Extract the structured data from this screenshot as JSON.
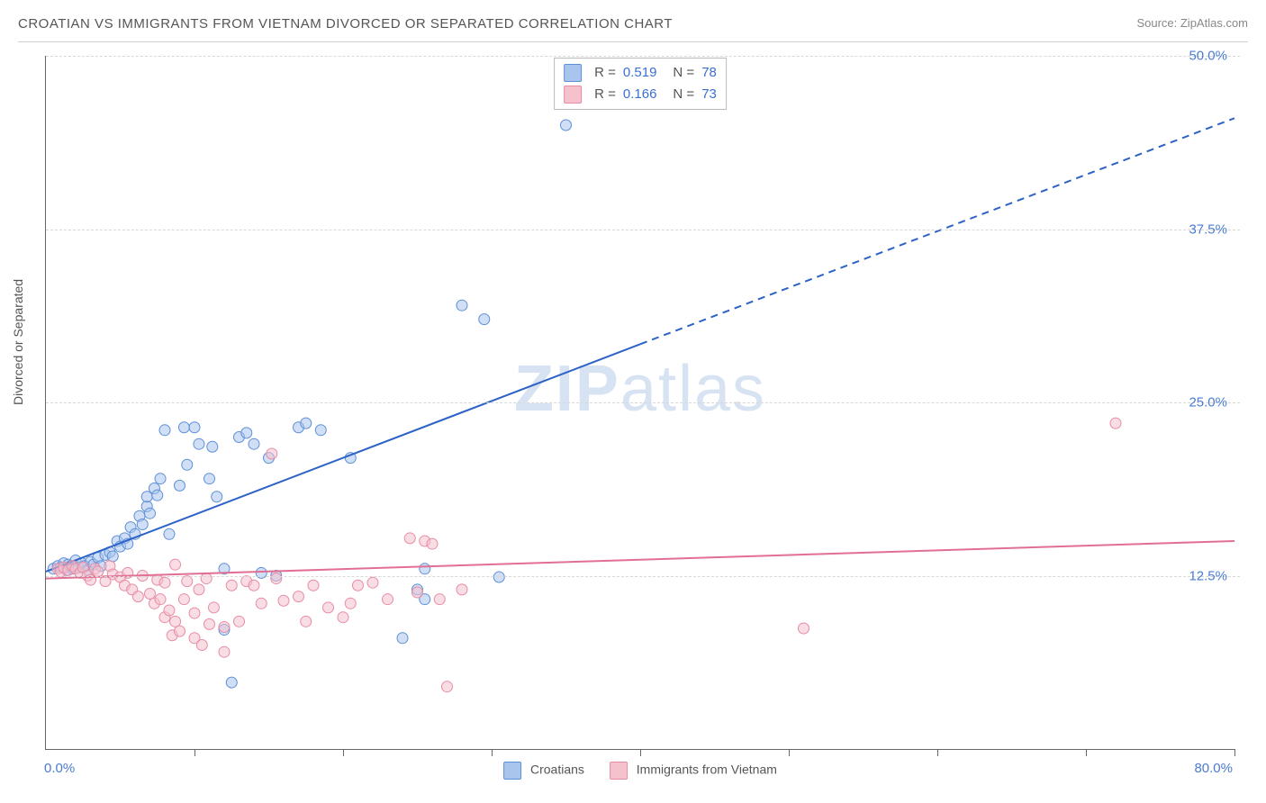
{
  "title": "CROATIAN VS IMMIGRANTS FROM VIETNAM DIVORCED OR SEPARATED CORRELATION CHART",
  "source_label": "Source: ZipAtlas.com",
  "y_axis_label": "Divorced or Separated",
  "watermark": "ZIPatlas",
  "chart": {
    "type": "scatter",
    "background_color": "#ffffff",
    "grid_color": "#d8d8d8",
    "axis_color": "#666666",
    "xlim": [
      0,
      80
    ],
    "ylim": [
      0,
      50
    ],
    "x_corner_min": "0.0%",
    "x_corner_max": "80.0%",
    "y_ticks": [
      {
        "v": 12.5,
        "label": "12.5%"
      },
      {
        "v": 25.0,
        "label": "25.0%"
      },
      {
        "v": 37.5,
        "label": "37.5%"
      },
      {
        "v": 50.0,
        "label": "50.0%"
      }
    ],
    "x_tick_positions": [
      10,
      20,
      30,
      40,
      50,
      60,
      70,
      80
    ],
    "marker_radius": 6,
    "marker_opacity": 0.55,
    "line_width": 2,
    "series": [
      {
        "id": "croatians",
        "label": "Croatians",
        "color_fill": "#a9c5ee",
        "color_stroke": "#5d8fd6",
        "line_color": "#2d62c6",
        "r_value": "0.519",
        "n_value": "78",
        "regression": {
          "solid": {
            "x1": 0,
            "y1": 12.8,
            "x2": 40,
            "y2": 29.2
          },
          "dashed": {
            "x1": 40,
            "y1": 29.2,
            "x2": 80,
            "y2": 45.5
          }
        },
        "points": [
          [
            0.5,
            13
          ],
          [
            0.8,
            13.2
          ],
          [
            1,
            13.1
          ],
          [
            1.2,
            13.4
          ],
          [
            1.4,
            12.9
          ],
          [
            1.5,
            13.3
          ],
          [
            1.7,
            13.2
          ],
          [
            1.8,
            13.0
          ],
          [
            2,
            13.6
          ],
          [
            2.2,
            13.1
          ],
          [
            2.4,
            13.4
          ],
          [
            2.6,
            13.2
          ],
          [
            2.8,
            12.9
          ],
          [
            3,
            13.5
          ],
          [
            3.2,
            13.3
          ],
          [
            3.5,
            13.8
          ],
          [
            3.7,
            13.2
          ],
          [
            4,
            14
          ],
          [
            4.3,
            14.2
          ],
          [
            4.5,
            13.9
          ],
          [
            4.8,
            15
          ],
          [
            5,
            14.6
          ],
          [
            5.3,
            15.2
          ],
          [
            5.5,
            14.8
          ],
          [
            5.7,
            16
          ],
          [
            6,
            15.5
          ],
          [
            6.3,
            16.8
          ],
          [
            6.5,
            16.2
          ],
          [
            6.8,
            17.5
          ],
          [
            6.8,
            18.2
          ],
          [
            7,
            17
          ],
          [
            7.3,
            18.8
          ],
          [
            7.5,
            18.3
          ],
          [
            7.7,
            19.5
          ],
          [
            8,
            23
          ],
          [
            8.3,
            15.5
          ],
          [
            9,
            19
          ],
          [
            9.3,
            23.2
          ],
          [
            9.5,
            20.5
          ],
          [
            10,
            23.2
          ],
          [
            10.3,
            22
          ],
          [
            11,
            19.5
          ],
          [
            11.2,
            21.8
          ],
          [
            11.5,
            18.2
          ],
          [
            12,
            8.6
          ],
          [
            12,
            13
          ],
          [
            13,
            22.5
          ],
          [
            13.5,
            22.8
          ],
          [
            12.5,
            4.8
          ],
          [
            14,
            22
          ],
          [
            14.5,
            12.7
          ],
          [
            15,
            21
          ],
          [
            15.5,
            12.5
          ],
          [
            17,
            23.2
          ],
          [
            17.5,
            23.5
          ],
          [
            18.5,
            23
          ],
          [
            20.5,
            21
          ],
          [
            24,
            8
          ],
          [
            25,
            11.5
          ],
          [
            25.5,
            10.8
          ],
          [
            25.5,
            13
          ],
          [
            28,
            32
          ],
          [
            29.5,
            31
          ],
          [
            30.5,
            12.4
          ],
          [
            35,
            45
          ]
        ]
      },
      {
        "id": "vietnam",
        "label": "Immigrants from Vietnam",
        "color_fill": "#f4c1cd",
        "color_stroke": "#e88ba3",
        "line_color": "#e16f93",
        "r_value": "0.166",
        "n_value": "73",
        "regression": {
          "solid": {
            "x1": 0,
            "y1": 12.3,
            "x2": 80,
            "y2": 15.0
          },
          "dashed": null
        },
        "points": [
          [
            0.8,
            13
          ],
          [
            1,
            12.8
          ],
          [
            1.2,
            13.1
          ],
          [
            1.5,
            12.9
          ],
          [
            1.8,
            13.2
          ],
          [
            2,
            13
          ],
          [
            2.3,
            12.7
          ],
          [
            2.5,
            13.1
          ],
          [
            2.8,
            12.5
          ],
          [
            3,
            12.2
          ],
          [
            3.3,
            13
          ],
          [
            3.5,
            12.8
          ],
          [
            4,
            12.1
          ],
          [
            4.3,
            13.2
          ],
          [
            4.5,
            12.6
          ],
          [
            5,
            12.4
          ],
          [
            5.3,
            11.8
          ],
          [
            5.5,
            12.7
          ],
          [
            5.8,
            11.5
          ],
          [
            6.2,
            11
          ],
          [
            6.5,
            12.5
          ],
          [
            7,
            11.2
          ],
          [
            7.3,
            10.5
          ],
          [
            7.5,
            12.2
          ],
          [
            7.7,
            10.8
          ],
          [
            8,
            9.5
          ],
          [
            8,
            12
          ],
          [
            8.3,
            10
          ],
          [
            8.5,
            8.2
          ],
          [
            8.7,
            9.2
          ],
          [
            8.7,
            13.3
          ],
          [
            9,
            8.5
          ],
          [
            9.3,
            10.8
          ],
          [
            9.5,
            12.1
          ],
          [
            10,
            9.8
          ],
          [
            10,
            8
          ],
          [
            10.3,
            11.5
          ],
          [
            10.5,
            7.5
          ],
          [
            10.8,
            12.3
          ],
          [
            11,
            9
          ],
          [
            11.3,
            10.2
          ],
          [
            12,
            7
          ],
          [
            12,
            8.8
          ],
          [
            12.5,
            11.8
          ],
          [
            13,
            9.2
          ],
          [
            13.5,
            12.1
          ],
          [
            14,
            11.8
          ],
          [
            14.5,
            10.5
          ],
          [
            15.2,
            21.3
          ],
          [
            15.5,
            12.3
          ],
          [
            16,
            10.7
          ],
          [
            17,
            11
          ],
          [
            17.5,
            9.2
          ],
          [
            18,
            11.8
          ],
          [
            19,
            10.2
          ],
          [
            20,
            9.5
          ],
          [
            20.5,
            10.5
          ],
          [
            21,
            11.8
          ],
          [
            22,
            12
          ],
          [
            23,
            10.8
          ],
          [
            24.5,
            15.2
          ],
          [
            25,
            11.3
          ],
          [
            25.5,
            15
          ],
          [
            26,
            14.8
          ],
          [
            26.5,
            10.8
          ],
          [
            27,
            4.5
          ],
          [
            28,
            11.5
          ],
          [
            51,
            8.7
          ],
          [
            72,
            23.5
          ]
        ]
      }
    ]
  }
}
